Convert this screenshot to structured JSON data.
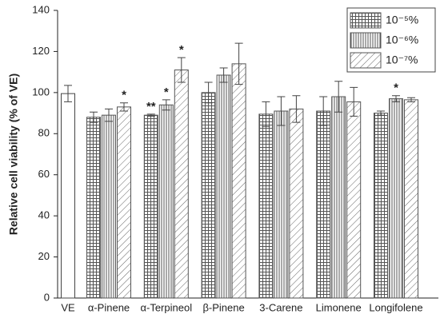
{
  "chart_data": {
    "type": "bar",
    "y_label": "Relative cell viability (% of VE)",
    "categories": [
      "VE",
      "α-Pinene",
      "α-Terpineol",
      "β-Pinene",
      "3-Carene",
      "Limonene",
      "Longifolene"
    ],
    "control_value": 99.5,
    "control_error": 4,
    "series": [
      {
        "name": "10⁻⁵%",
        "pattern": "grid",
        "color": "#555555",
        "values": [
          null,
          88,
          89,
          100,
          89.5,
          91,
          90
        ],
        "errors": [
          null,
          2.5,
          0.5,
          5,
          6,
          7,
          1
        ],
        "labels": [
          null,
          null,
          "**",
          null,
          null,
          null,
          null
        ]
      },
      {
        "name": "10⁻⁶%",
        "pattern": "vertical",
        "color": "#555555",
        "values": [
          null,
          89,
          94,
          108.5,
          91,
          98,
          97
        ],
        "errors": [
          null,
          3,
          2.5,
          3.5,
          7,
          7.5,
          1.5
        ],
        "labels": [
          null,
          null,
          "*",
          null,
          null,
          null,
          "*"
        ]
      },
      {
        "name": "10⁻⁷%",
        "pattern": "diagonal",
        "color": "#555555",
        "values": [
          null,
          93,
          111,
          114,
          92,
          95.5,
          96.5
        ],
        "errors": [
          null,
          2,
          6,
          10,
          6.5,
          7,
          1
        ],
        "labels": [
          null,
          "*",
          "*",
          null,
          null,
          null,
          null
        ]
      }
    ],
    "ylim": [
      0,
      140
    ],
    "yticks": [
      0,
      20,
      40,
      60,
      80,
      100,
      120,
      140
    ],
    "grid": false,
    "legend": "top-right"
  }
}
